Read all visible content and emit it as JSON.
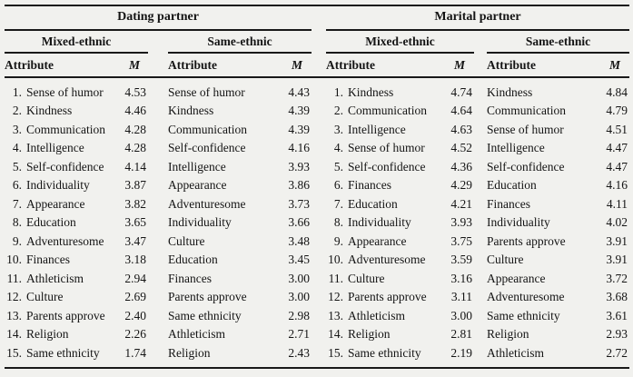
{
  "page_bg": "#f1f1ee",
  "rule_color": "#191919",
  "table": {
    "group_headers": [
      {
        "label": "Dating partner"
      },
      {
        "label": "Marital partner"
      }
    ],
    "subgroup_headers": [
      "Mixed-ethnic",
      "Same-ethnic",
      "Mixed-ethnic",
      "Same-ethnic"
    ],
    "column_headers": {
      "attribute": "Attribute",
      "mean": "M"
    },
    "rows": [
      {
        "rank": "1.",
        "dating_mixed": {
          "attribute": "Sense of humor",
          "m": "4.53"
        },
        "dating_same": {
          "attribute": "Sense of humor",
          "m": "4.43"
        },
        "marital_mixed": {
          "attribute": "Kindness",
          "m": "4.74"
        },
        "marital_same": {
          "attribute": "Kindness",
          "m": "4.84"
        }
      },
      {
        "rank": "2.",
        "dating_mixed": {
          "attribute": "Kindness",
          "m": "4.46"
        },
        "dating_same": {
          "attribute": "Kindness",
          "m": "4.39"
        },
        "marital_mixed": {
          "attribute": "Communication",
          "m": "4.64"
        },
        "marital_same": {
          "attribute": "Communication",
          "m": "4.79"
        }
      },
      {
        "rank": "3.",
        "dating_mixed": {
          "attribute": "Communication",
          "m": "4.28"
        },
        "dating_same": {
          "attribute": "Communication",
          "m": "4.39"
        },
        "marital_mixed": {
          "attribute": "Intelligence",
          "m": "4.63"
        },
        "marital_same": {
          "attribute": "Sense of humor",
          "m": "4.51"
        }
      },
      {
        "rank": "4.",
        "dating_mixed": {
          "attribute": "Intelligence",
          "m": "4.28"
        },
        "dating_same": {
          "attribute": "Self-confidence",
          "m": "4.16"
        },
        "marital_mixed": {
          "attribute": "Sense of humor",
          "m": "4.52"
        },
        "marital_same": {
          "attribute": "Intelligence",
          "m": "4.47"
        }
      },
      {
        "rank": "5.",
        "dating_mixed": {
          "attribute": "Self-confidence",
          "m": "4.14"
        },
        "dating_same": {
          "attribute": "Intelligence",
          "m": "3.93"
        },
        "marital_mixed": {
          "attribute": "Self-confidence",
          "m": "4.36"
        },
        "marital_same": {
          "attribute": "Self-confidence",
          "m": "4.47"
        }
      },
      {
        "rank": "6.",
        "dating_mixed": {
          "attribute": "Individuality",
          "m": "3.87"
        },
        "dating_same": {
          "attribute": "Appearance",
          "m": "3.86"
        },
        "marital_mixed": {
          "attribute": "Finances",
          "m": "4.29"
        },
        "marital_same": {
          "attribute": "Education",
          "m": "4.16"
        }
      },
      {
        "rank": "7.",
        "dating_mixed": {
          "attribute": "Appearance",
          "m": "3.82"
        },
        "dating_same": {
          "attribute": "Adventuresome",
          "m": "3.73"
        },
        "marital_mixed": {
          "attribute": "Education",
          "m": "4.21"
        },
        "marital_same": {
          "attribute": "Finances",
          "m": "4.11"
        }
      },
      {
        "rank": "8.",
        "dating_mixed": {
          "attribute": "Education",
          "m": "3.65"
        },
        "dating_same": {
          "attribute": "Individuality",
          "m": "3.66"
        },
        "marital_mixed": {
          "attribute": "Individuality",
          "m": "3.93"
        },
        "marital_same": {
          "attribute": "Individuality",
          "m": "4.02"
        }
      },
      {
        "rank": "9.",
        "dating_mixed": {
          "attribute": "Adventuresome",
          "m": "3.47"
        },
        "dating_same": {
          "attribute": "Culture",
          "m": "3.48"
        },
        "marital_mixed": {
          "attribute": "Appearance",
          "m": "3.75"
        },
        "marital_same": {
          "attribute": "Parents approve",
          "m": "3.91"
        }
      },
      {
        "rank": "10.",
        "dating_mixed": {
          "attribute": "Finances",
          "m": "3.18"
        },
        "dating_same": {
          "attribute": "Education",
          "m": "3.45"
        },
        "marital_mixed": {
          "attribute": "Adventuresome",
          "m": "3.59"
        },
        "marital_same": {
          "attribute": "Culture",
          "m": "3.91"
        }
      },
      {
        "rank": "11.",
        "dating_mixed": {
          "attribute": "Athleticism",
          "m": "2.94"
        },
        "dating_same": {
          "attribute": "Finances",
          "m": "3.00"
        },
        "marital_mixed": {
          "attribute": "Culture",
          "m": "3.16"
        },
        "marital_same": {
          "attribute": "Appearance",
          "m": "3.72"
        }
      },
      {
        "rank": "12.",
        "dating_mixed": {
          "attribute": "Culture",
          "m": "2.69"
        },
        "dating_same": {
          "attribute": "Parents approve",
          "m": "3.00"
        },
        "marital_mixed": {
          "attribute": "Parents approve",
          "m": "3.11"
        },
        "marital_same": {
          "attribute": "Adventuresome",
          "m": "3.68"
        }
      },
      {
        "rank": "13.",
        "dating_mixed": {
          "attribute": "Parents approve",
          "m": "2.40"
        },
        "dating_same": {
          "attribute": "Same ethnicity",
          "m": "2.98"
        },
        "marital_mixed": {
          "attribute": "Athleticism",
          "m": "3.00"
        },
        "marital_same": {
          "attribute": "Same ethnicity",
          "m": "3.61"
        }
      },
      {
        "rank": "14.",
        "dating_mixed": {
          "attribute": "Religion",
          "m": "2.26"
        },
        "dating_same": {
          "attribute": "Athleticism",
          "m": "2.71"
        },
        "marital_mixed": {
          "attribute": "Religion",
          "m": "2.81"
        },
        "marital_same": {
          "attribute": "Religion",
          "m": "2.93"
        }
      },
      {
        "rank": "15.",
        "dating_mixed": {
          "attribute": "Same ethnicity",
          "m": "1.74"
        },
        "dating_same": {
          "attribute": "Religion",
          "m": "2.43"
        },
        "marital_mixed": {
          "attribute": "Same ethnicity",
          "m": "2.19"
        },
        "marital_same": {
          "attribute": "Athleticism",
          "m": "2.72"
        }
      }
    ]
  }
}
